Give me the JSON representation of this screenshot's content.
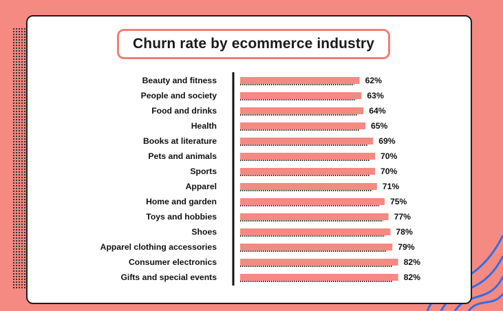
{
  "chart_data": {
    "type": "bar",
    "orientation": "horizontal",
    "title": "Churn rate by ecommerce industry",
    "xlabel": "",
    "ylabel": "",
    "xlim": [
      0,
      100
    ],
    "grid": false,
    "legend": "none",
    "bar_color": "#f48a82",
    "value_suffix": "%",
    "categories": [
      "Beauty and fitness",
      "People and society",
      "Food and drinks",
      "Health",
      "Books at literature",
      "Pets and animals",
      "Sports",
      "Apparel",
      "Home and garden",
      "Toys and hobbies",
      "Shoes",
      "Apparel clothing accessories",
      "Consumer electronics",
      "Gifts and special events"
    ],
    "values": [
      62,
      63,
      64,
      65,
      69,
      70,
      70,
      71,
      75,
      77,
      78,
      79,
      82,
      82
    ],
    "value_labels": [
      "62%",
      "63%",
      "64%",
      "65%",
      "69%",
      "70%",
      "70%",
      "71%",
      "75%",
      "77%",
      "78%",
      "79%",
      "82%",
      "82%"
    ]
  },
  "colors": {
    "background": "#f48a82",
    "card": "#ffffff",
    "accent": "#f07e77",
    "wave": "#2f6fe6",
    "text": "#111111"
  }
}
